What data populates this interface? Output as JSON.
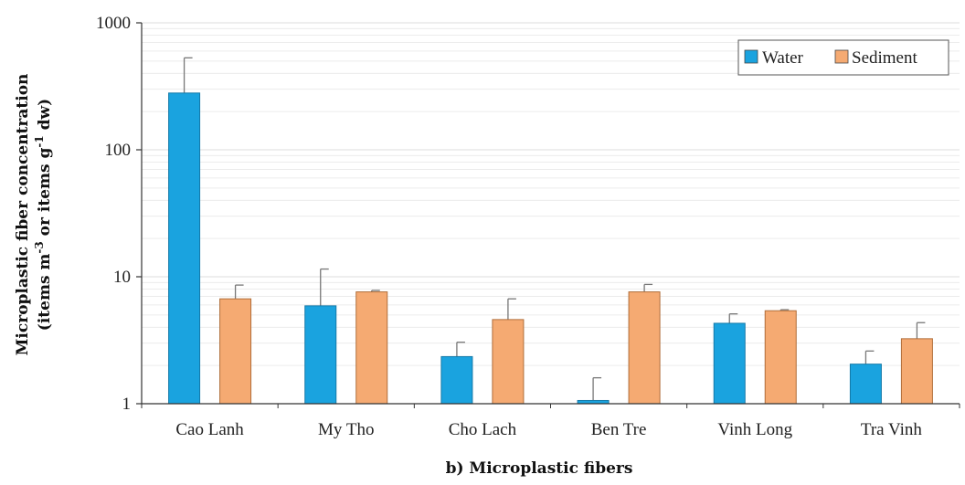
{
  "chart_data": {
    "type": "bar",
    "title": "",
    "xlabel": "b) Microplastic fibers",
    "ylabel_line1": "Microplastic fiber concentration",
    "ylabel_line2_pre": "(items m",
    "ylabel_sup1": "-3",
    "ylabel_line2_mid": " or items g",
    "ylabel_sup2": "-1",
    "ylabel_line2_post": " dw)",
    "yscale": "log",
    "ylim": [
      1,
      1000
    ],
    "yticks": [
      "1",
      "10",
      "100",
      "1000"
    ],
    "grid": true,
    "legend_position": "top-right",
    "categories": [
      "Cao Lanh",
      "My Tho",
      "Cho Lach",
      "Ben Tre",
      "Vinh Long",
      "Tra Vinh"
    ],
    "series": [
      {
        "name": "Water",
        "color": "#1aa3df",
        "values": [
          280,
          5.9,
          2.35,
          1.06,
          4.3,
          2.05
        ],
        "error_upper": [
          530,
          11.5,
          3.05,
          1.6,
          5.1,
          2.6
        ]
      },
      {
        "name": "Sediment",
        "color": "#f5aa72",
        "values": [
          6.7,
          7.6,
          4.6,
          7.6,
          5.4,
          3.25
        ],
        "error_upper": [
          8.6,
          7.8,
          6.7,
          8.7,
          5.5,
          4.35
        ]
      }
    ]
  }
}
